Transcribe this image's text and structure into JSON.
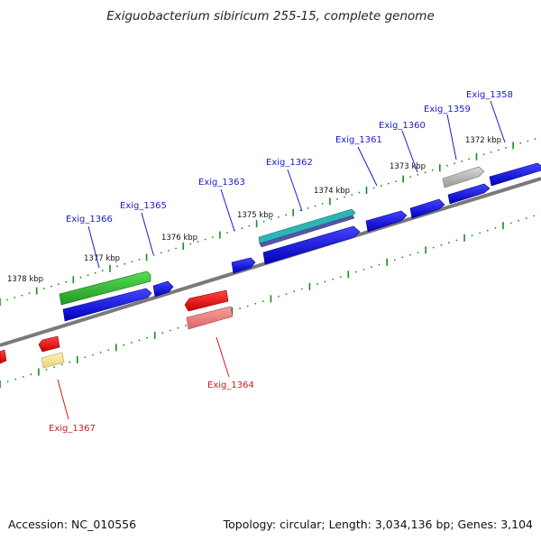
{
  "title": "Exiguobacterium sibiricum 255-15, complete genome",
  "footer": {
    "accession": "Accession: NC_010556",
    "topology": "Topology: circular; Length: 3,034,136 bp; Genes: 3,104"
  },
  "ruler_labels": [
    "1372 kbp",
    "1373 kbp",
    "1374 kbp",
    "1375 kbp",
    "1376 kbp",
    "1377 kbp",
    "1378 kbp"
  ],
  "gene_labels": {
    "exig_1358": "Exig_1358",
    "exig_1359": "Exig_1359",
    "exig_1360": "Exig_1360",
    "exig_1361": "Exig_1361",
    "exig_1362": "Exig_1362",
    "exig_1363": "Exig_1363",
    "exig_1364": "Exig_1364",
    "exig_1365": "Exig_1365",
    "exig_1366": "Exig_1366",
    "exig_1367": "Exig_1367"
  },
  "colors": {
    "forward_label": "#1a1acc",
    "reverse_label": "#cc1a1a",
    "cds_forward": "#1010dd",
    "cds_reverse": "#ee1111",
    "rna_green": "#33bb33",
    "teal": "#22aaaa",
    "gray": "#aaaaaa",
    "pink": "#ee7777",
    "yellow": "#eedd88",
    "backbone": "#777777",
    "tick": "#1e8a1e"
  }
}
